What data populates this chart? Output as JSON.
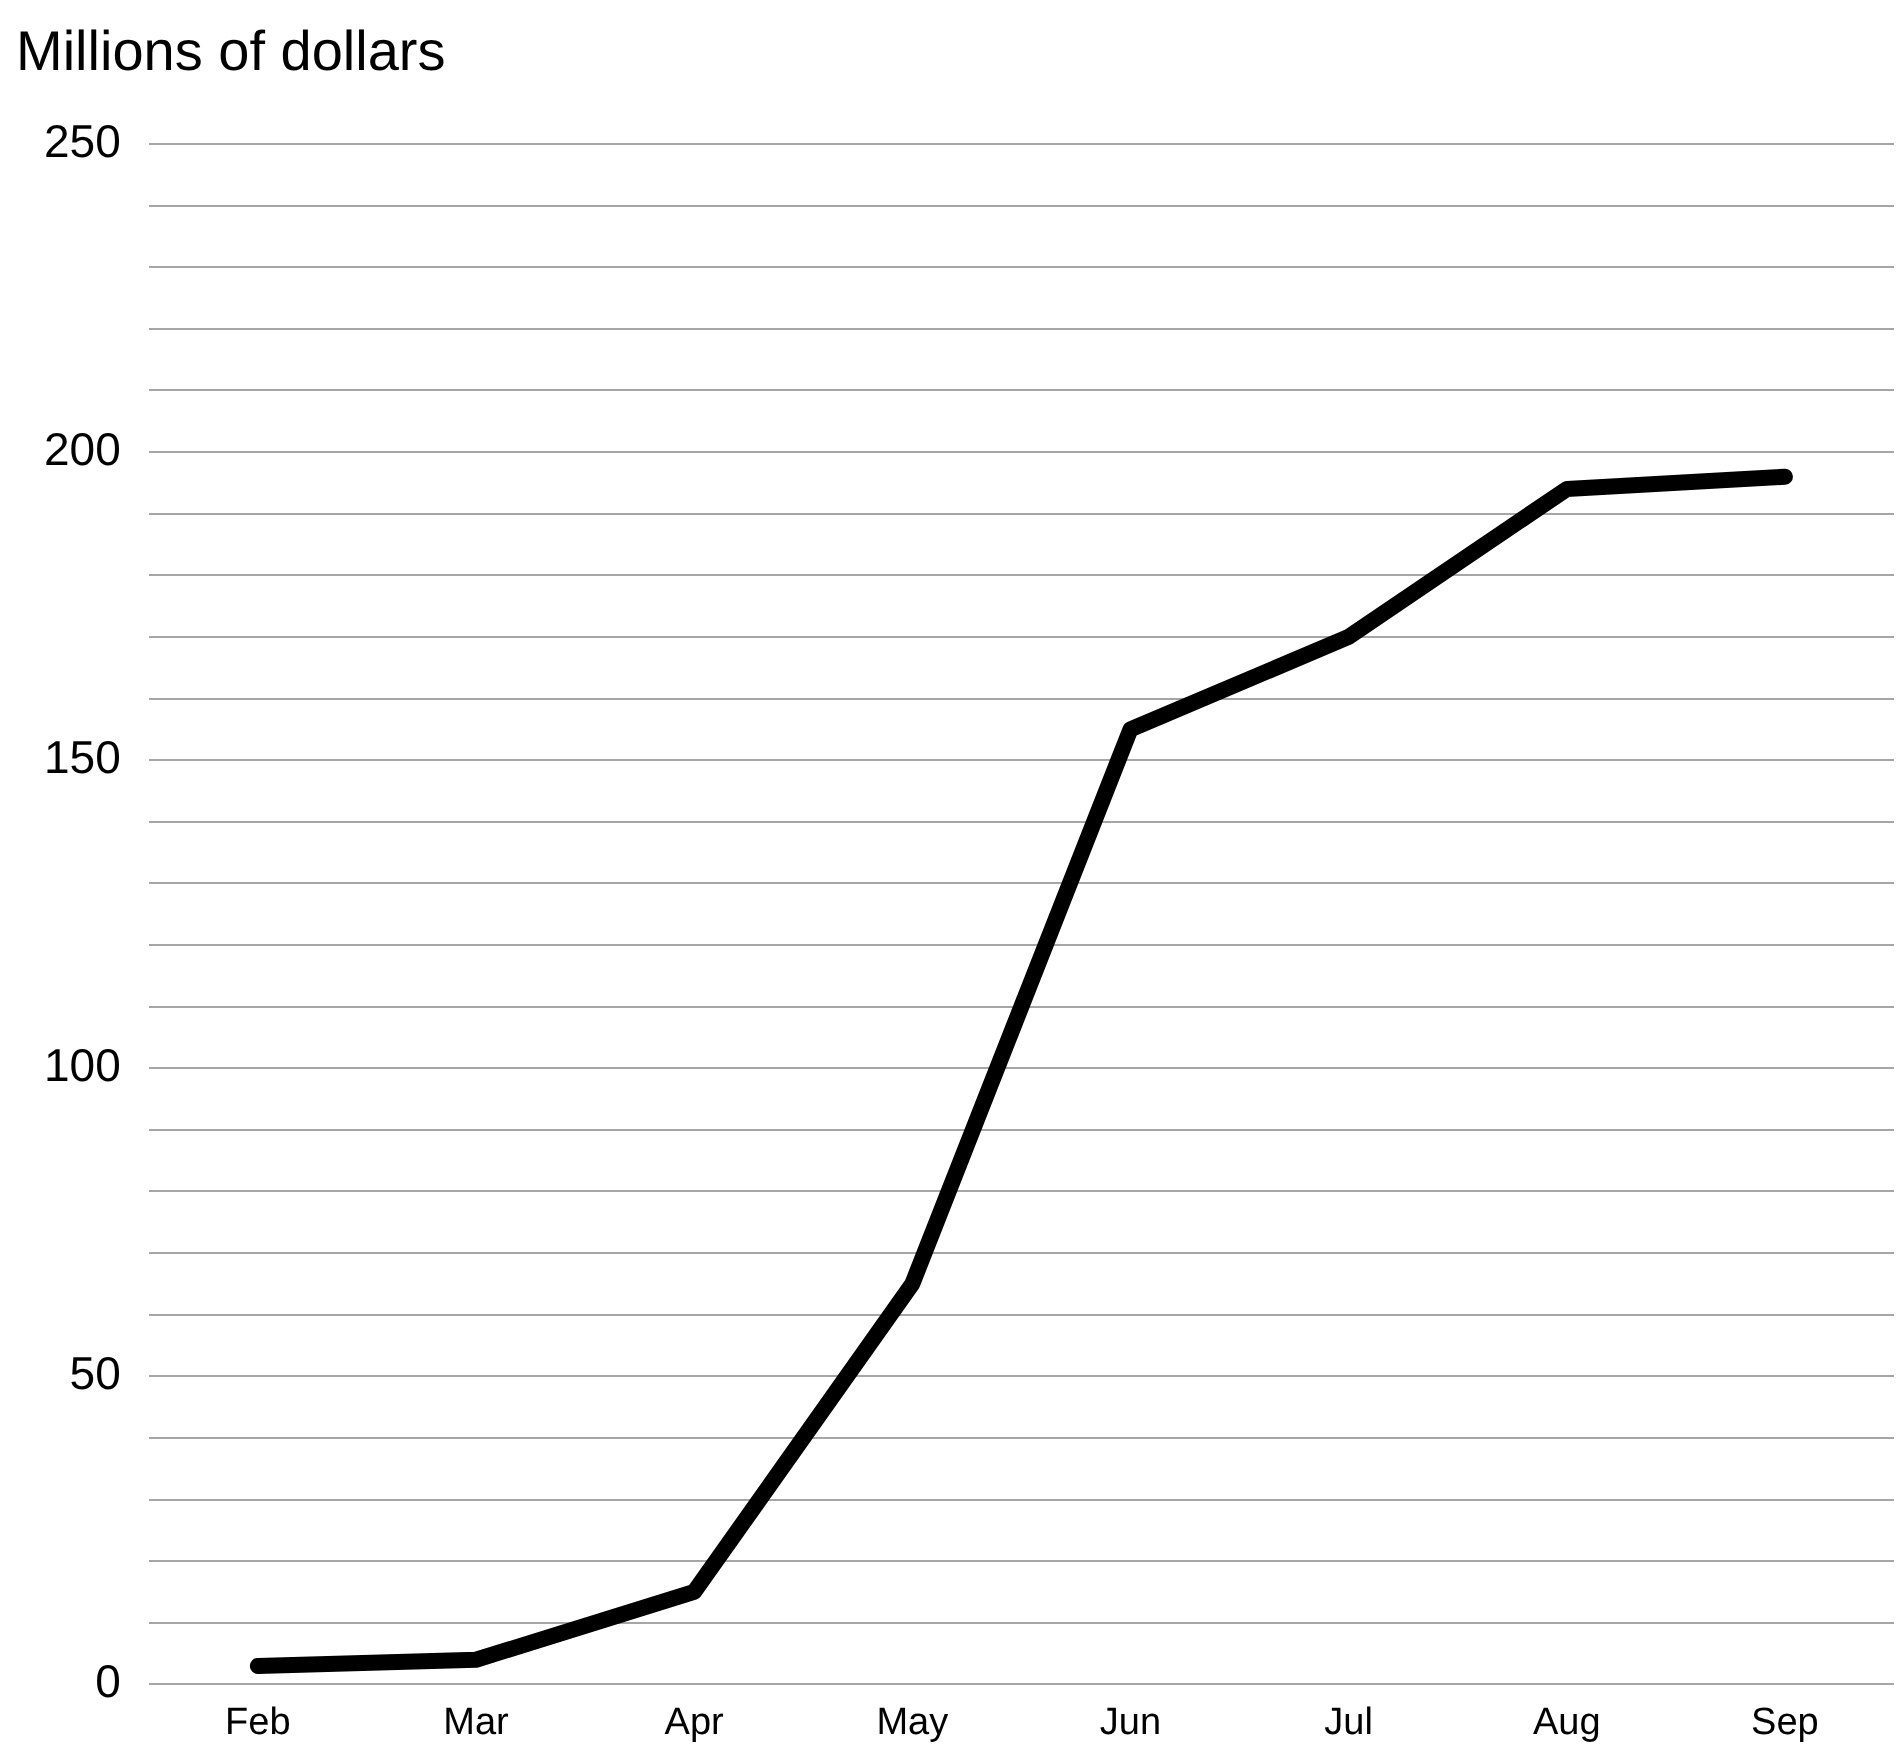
{
  "chart_data": {
    "type": "line",
    "ylabel": "Millions of dollars",
    "categories": [
      "Feb",
      "Mar",
      "Apr",
      "May",
      "Jun",
      "Jul",
      "Aug",
      "Sep"
    ],
    "series": [
      {
        "color": "#000000",
        "values": [
          3,
          4,
          15,
          65,
          155,
          170,
          194,
          196
        ]
      }
    ],
    "ylim": [
      0,
      250
    ],
    "yticks": [
      0,
      {
        "value": 10,
        "label": null
      },
      {
        "value": 20,
        "label": null
      },
      {
        "value": 30,
        "label": null
      },
      {
        "value": 40,
        "label": null
      },
      50,
      {
        "value": 60,
        "label": null
      },
      {
        "value": 70,
        "label": null
      },
      {
        "value": 80,
        "label": null
      },
      {
        "value": 90,
        "label": null
      },
      100,
      {
        "value": 110,
        "label": null
      },
      {
        "value": 120,
        "label": null
      },
      {
        "value": 130,
        "label": null
      },
      {
        "value": 140,
        "label": null
      },
      150,
      {
        "value": 160,
        "label": null
      },
      {
        "value": 170,
        "label": null
      },
      {
        "value": 180,
        "label": null
      },
      {
        "value": 190,
        "label": null
      },
      200,
      {
        "value": 210,
        "label": null
      },
      {
        "value": 220,
        "label": null
      },
      {
        "value": 230,
        "label": null
      },
      {
        "value": 240,
        "label": null
      },
      250
    ],
    "grid": "y",
    "legend": false,
    "marker": "none",
    "line_style": "solid"
  }
}
